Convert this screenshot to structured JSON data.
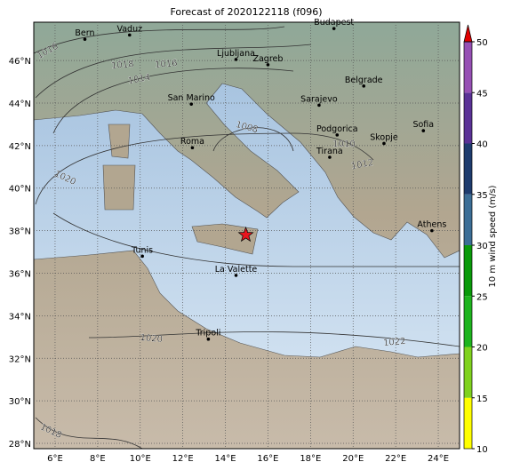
{
  "title": "Forecast of 2020122118 (f096)",
  "map": {
    "lonlim": [
      5,
      25
    ],
    "latlim": [
      27.75,
      47.8
    ],
    "lonticks": [
      {
        "value": 6,
        "label": "6°E"
      },
      {
        "value": 8,
        "label": "8°E"
      },
      {
        "value": 10,
        "label": "10°E"
      },
      {
        "value": 12,
        "label": "12°E"
      },
      {
        "value": 14,
        "label": "14°E"
      },
      {
        "value": 16,
        "label": "16°E"
      },
      {
        "value": 18,
        "label": "18°E"
      },
      {
        "value": 20,
        "label": "20°E"
      },
      {
        "value": 22,
        "label": "22°E"
      },
      {
        "value": 24,
        "label": "24°E"
      }
    ],
    "latticks": [
      {
        "value": 28,
        "label": "28°N"
      },
      {
        "value": 30,
        "label": "30°N"
      },
      {
        "value": 32,
        "label": "32°N"
      },
      {
        "value": 34,
        "label": "34°N"
      },
      {
        "value": 36,
        "label": "36°N"
      },
      {
        "value": 38,
        "label": "38°N"
      },
      {
        "value": 40,
        "label": "40°N"
      },
      {
        "value": 42,
        "label": "42°N"
      },
      {
        "value": 44,
        "label": "44°N"
      },
      {
        "value": 46,
        "label": "46°N"
      }
    ],
    "grid": true,
    "cities": [
      {
        "name": "Bern",
        "lon": 7.4,
        "lat": 47.0
      },
      {
        "name": "Vaduz",
        "lon": 9.5,
        "lat": 47.2
      },
      {
        "name": "Budapest",
        "lon": 19.1,
        "lat": 47.5
      },
      {
        "name": "Ljubljana",
        "lon": 14.5,
        "lat": 46.05
      },
      {
        "name": "Zagreb",
        "lon": 16.0,
        "lat": 45.8
      },
      {
        "name": "Belgrade",
        "lon": 20.5,
        "lat": 44.8
      },
      {
        "name": "San Marino",
        "lon": 12.4,
        "lat": 43.95
      },
      {
        "name": "Sarajevo",
        "lon": 18.4,
        "lat": 43.9
      },
      {
        "name": "Sofia",
        "lon": 23.3,
        "lat": 42.7
      },
      {
        "name": "Podgorica",
        "lon": 19.25,
        "lat": 42.5
      },
      {
        "name": "Skopje",
        "lon": 21.45,
        "lat": 42.1
      },
      {
        "name": "Roma",
        "lon": 12.45,
        "lat": 41.9
      },
      {
        "name": "Tirana",
        "lon": 18.9,
        "lat": 41.45
      },
      {
        "name": "Athens",
        "lon": 23.7,
        "lat": 38.0
      },
      {
        "name": "Tunis",
        "lon": 10.1,
        "lat": 36.8
      },
      {
        "name": "La Valette",
        "lon": 14.5,
        "lat": 35.9
      },
      {
        "name": "Tripoli",
        "lon": 13.2,
        "lat": 32.9
      }
    ],
    "marker": {
      "lon": 14.96,
      "lat": 37.8,
      "color": "#e8141e"
    },
    "isobar_labels": [
      1016,
      1018,
      1016,
      1014,
      1008,
      1010,
      1012,
      1020,
      1020,
      1022,
      1018
    ]
  },
  "colorbar": {
    "label": "10 m wind speed (m/s)",
    "lim": [
      10,
      50
    ],
    "ticks": [
      10,
      15,
      20,
      25,
      30,
      35,
      40,
      45,
      50
    ],
    "colors": [
      "#ffff00",
      "#80d21e",
      "#1eb41e",
      "#0a9a0a",
      "#3c6e96",
      "#1e3c6e",
      "#5a3296",
      "#9650b4"
    ],
    "over_color": "#e00000"
  }
}
